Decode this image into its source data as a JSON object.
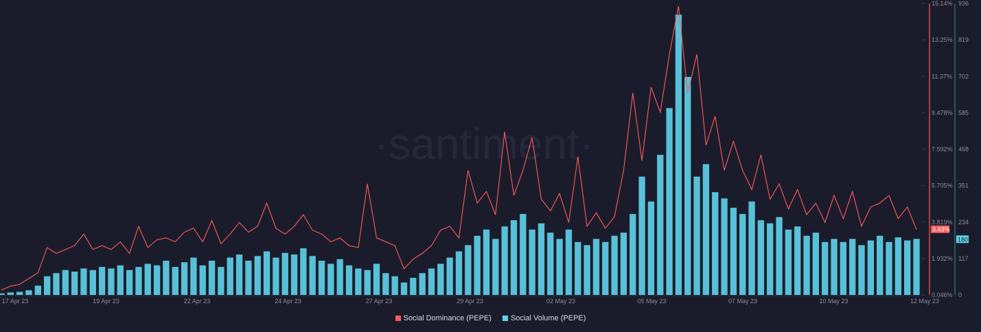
{
  "chart_data": {
    "type": "bar+line",
    "watermark": "·santiment·",
    "x_tick_labels": [
      "17 Apr 23",
      "19 Apr 23",
      "22 Apr 23",
      "24 Apr 23",
      "27 Apr 23",
      "29 Apr 23",
      "02 May 23",
      "05 May 23",
      "07 May 23",
      "10 May 23",
      "12 May 23"
    ],
    "x_range": [
      "2023-04-17",
      "2023-05-12"
    ],
    "sampling": "6h",
    "grid": false,
    "legend_position": "bottom",
    "series": [
      {
        "name": "Social Dominance (PEPE)",
        "type": "line",
        "color": "#ff5b5b",
        "axis": "right-outer-left",
        "unit": "%",
        "ylim": [
          0.046,
          15.14
        ],
        "tick_labels": [
          "15.14%",
          "13.25%",
          "11.37%",
          "9.478%",
          "7.592%",
          "5.705%",
          "3.819%",
          "1.932%",
          "0.046%"
        ],
        "last_value_label": "3.43%",
        "values": [
          0.3,
          0.5,
          0.6,
          0.9,
          1.2,
          2.5,
          2.2,
          2.4,
          2.6,
          3.2,
          2.4,
          2.6,
          2.4,
          2.8,
          2.2,
          3.6,
          2.5,
          2.9,
          3.0,
          2.8,
          3.3,
          3.5,
          2.8,
          3.9,
          2.7,
          3.2,
          3.8,
          3.3,
          3.6,
          4.8,
          3.5,
          3.2,
          3.6,
          4.2,
          3.4,
          3.2,
          2.8,
          3.0,
          2.6,
          2.5,
          5.8,
          3.0,
          2.8,
          2.6,
          1.4,
          1.9,
          2.2,
          2.6,
          3.4,
          3.6,
          3.0,
          6.5,
          4.8,
          5.4,
          4.2,
          8.5,
          5.2,
          6.5,
          8.2,
          5.0,
          4.4,
          5.3,
          3.8,
          7.2,
          3.6,
          4.3,
          3.5,
          4.1,
          6.5,
          10.5,
          7.0,
          10.8,
          9.5,
          12.5,
          15.0,
          10.5,
          12.5,
          7.8,
          9.3,
          6.5,
          8.0,
          6.5,
          5.5,
          7.3,
          5.0,
          5.8,
          4.5,
          5.5,
          4.2,
          4.8,
          3.8,
          5.2,
          4.0,
          5.4,
          3.6,
          4.6,
          4.8,
          5.2,
          4.0,
          4.6,
          3.43
        ]
      },
      {
        "name": "Social Volume (PEPE)",
        "type": "bar",
        "color": "#5fd3ea",
        "axis": "right",
        "ylim": [
          0,
          936
        ],
        "tick_labels": [
          "936",
          "819",
          "702",
          "585",
          "468",
          "351",
          "234",
          "117",
          "0"
        ],
        "last_value_label": "180",
        "values": [
          5,
          8,
          10,
          15,
          30,
          60,
          70,
          80,
          75,
          85,
          80,
          90,
          85,
          95,
          80,
          90,
          100,
          95,
          110,
          90,
          105,
          120,
          95,
          110,
          90,
          120,
          130,
          110,
          125,
          140,
          120,
          135,
          130,
          150,
          125,
          110,
          100,
          115,
          95,
          85,
          80,
          100,
          70,
          60,
          40,
          55,
          70,
          85,
          100,
          120,
          140,
          160,
          190,
          210,
          180,
          220,
          240,
          260,
          210,
          230,
          200,
          180,
          210,
          170,
          160,
          180,
          170,
          190,
          200,
          260,
          380,
          300,
          450,
          600,
          900,
          700,
          380,
          420,
          330,
          310,
          280,
          260,
          300,
          240,
          230,
          250,
          210,
          220,
          190,
          200,
          170,
          180,
          170,
          180,
          160,
          175,
          190,
          170,
          185,
          175,
          180
        ]
      }
    ]
  }
}
